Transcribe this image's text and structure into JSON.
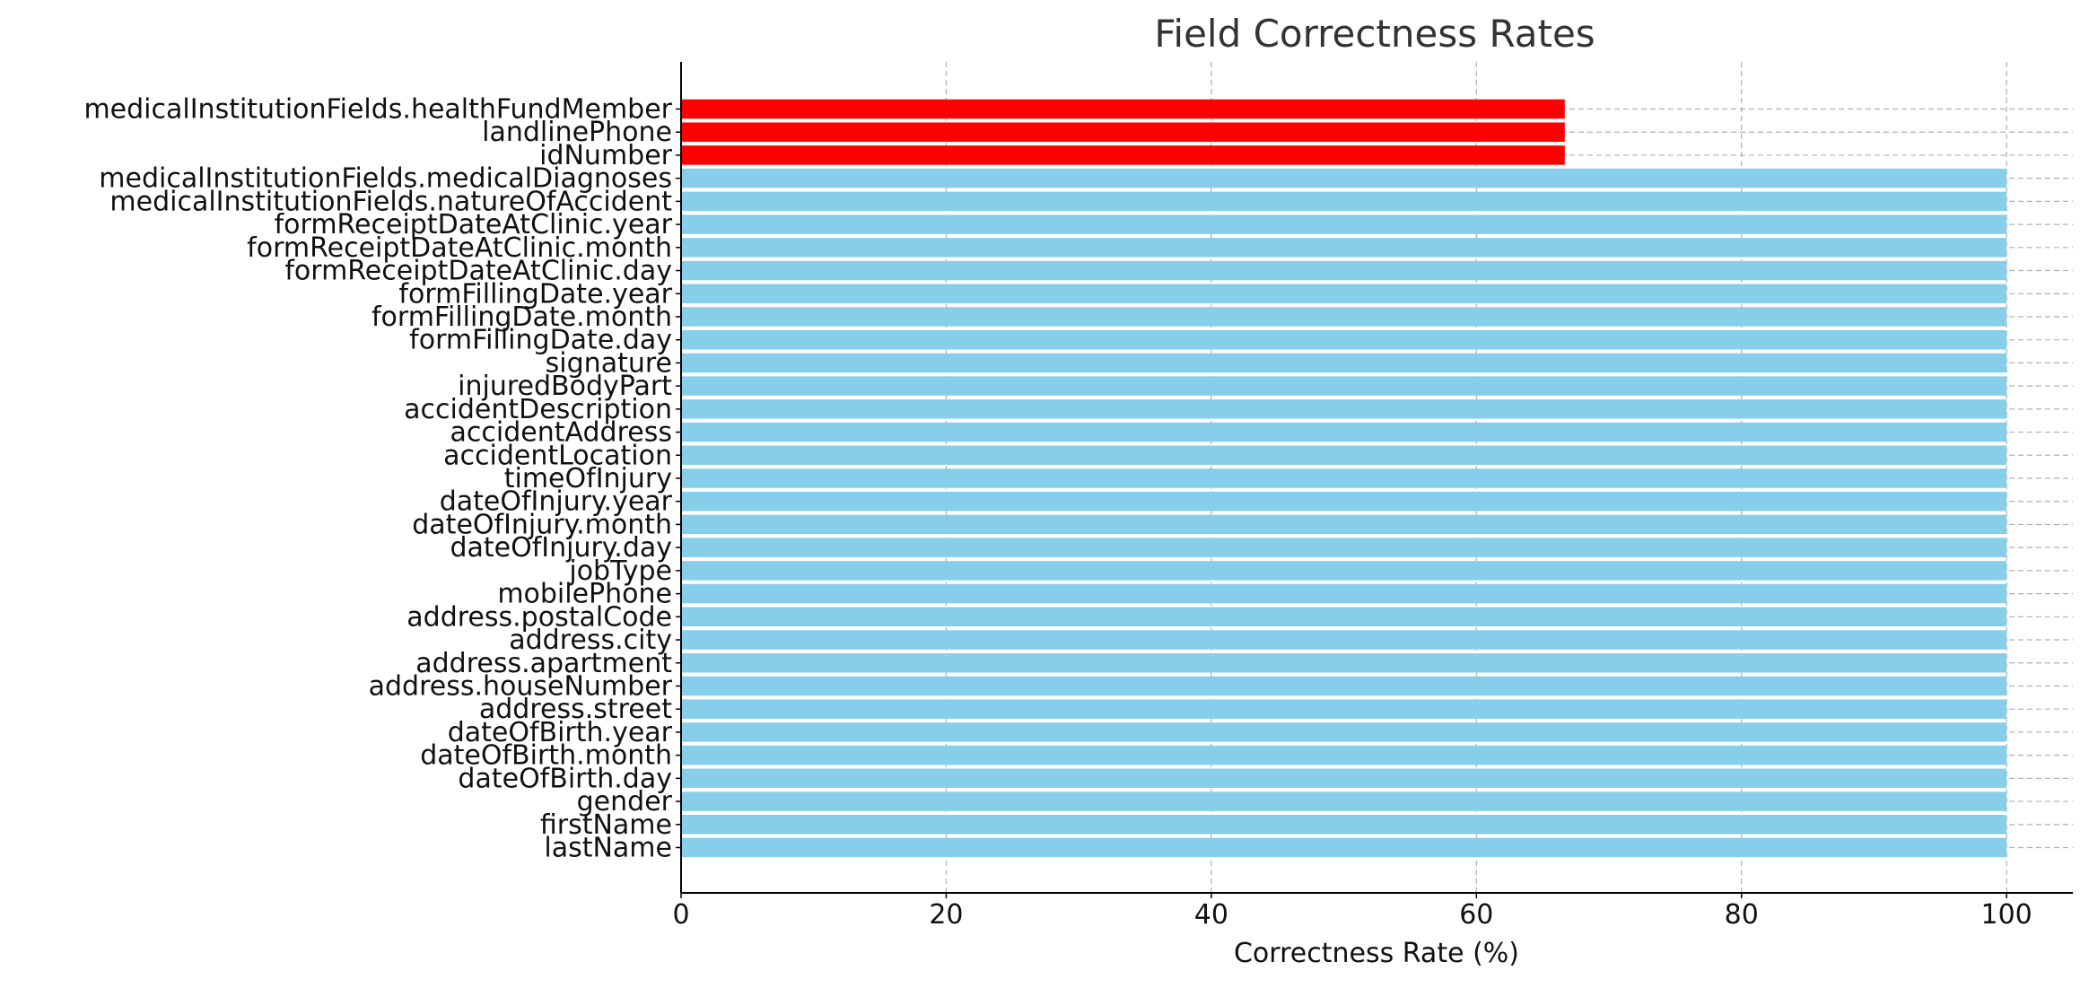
{
  "chart_data": {
    "type": "bar",
    "orientation": "horizontal",
    "title": "Field Correctness Rates",
    "xlabel": "Correctness Rate (%)",
    "ylabel": "",
    "xlim": [
      0,
      105
    ],
    "xticks": [
      0,
      20,
      40,
      60,
      80,
      100
    ],
    "grid": true,
    "categories": [
      "lastName",
      "firstName",
      "gender",
      "dateOfBirth.day",
      "dateOfBirth.month",
      "dateOfBirth.year",
      "address.street",
      "address.houseNumber",
      "address.apartment",
      "address.city",
      "address.postalCode",
      "mobilePhone",
      "jobType",
      "dateOfInjury.day",
      "dateOfInjury.month",
      "dateOfInjury.year",
      "timeOfInjury",
      "accidentLocation",
      "accidentAddress",
      "accidentDescription",
      "injuredBodyPart",
      "signature",
      "formFillingDate.day",
      "formFillingDate.month",
      "formFillingDate.year",
      "formReceiptDateAtClinic.day",
      "formReceiptDateAtClinic.month",
      "formReceiptDateAtClinic.year",
      "medicalInstitutionFields.natureOfAccident",
      "medicalInstitutionFields.medicalDiagnoses",
      "idNumber",
      "landlinePhone",
      "medicalInstitutionFields.healthFundMember"
    ],
    "values": [
      100,
      100,
      100,
      100,
      100,
      100,
      100,
      100,
      100,
      100,
      100,
      100,
      100,
      100,
      100,
      100,
      100,
      100,
      100,
      100,
      100,
      100,
      100,
      100,
      100,
      100,
      100,
      100,
      100,
      100,
      66.67,
      66.67,
      66.67
    ],
    "colors": {
      "full": "#87ceeb",
      "partial": "#ff0000",
      "grid": "#b0b0b0",
      "axis": "#000000"
    }
  }
}
